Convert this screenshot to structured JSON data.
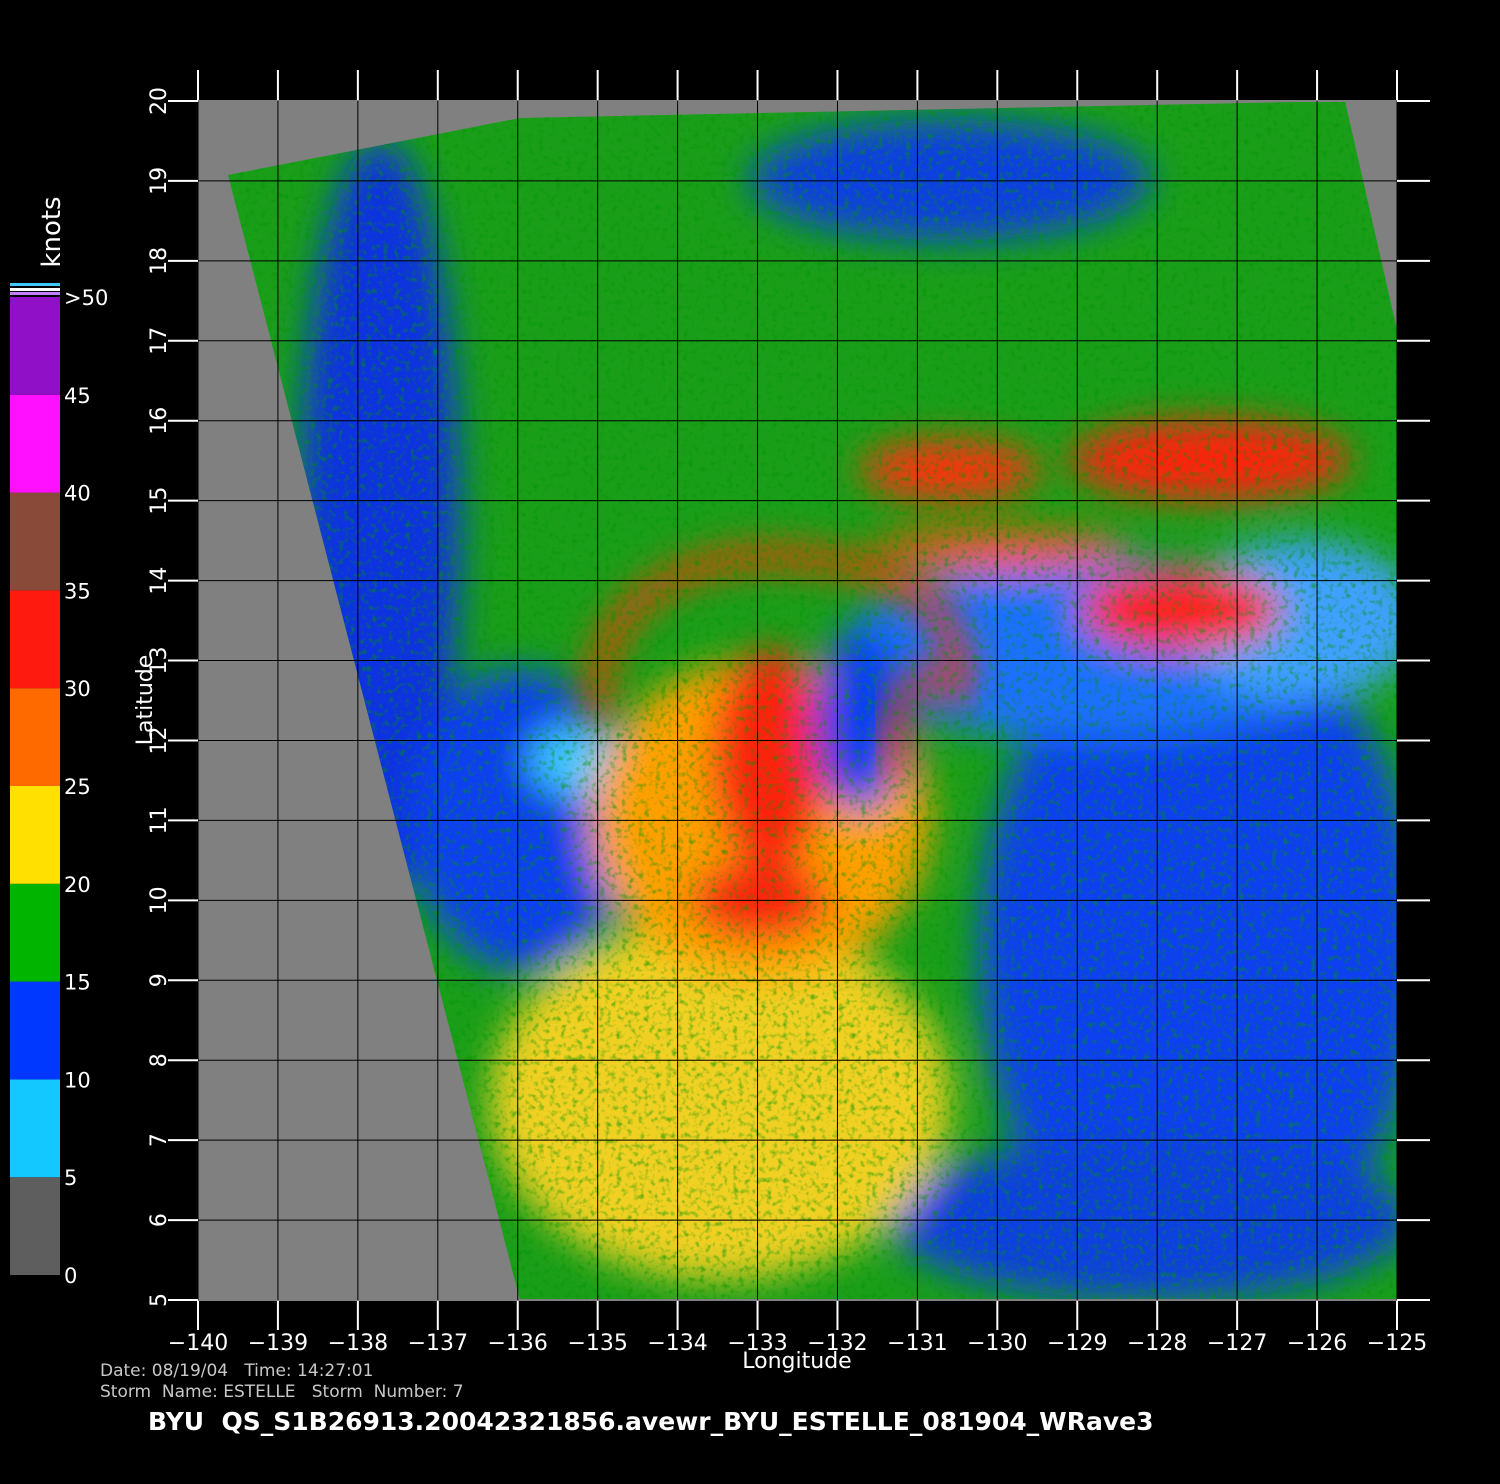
{
  "x_axis": {
    "label": "Longitude",
    "lim": [
      -140,
      -125
    ],
    "ticks": [
      {
        "value": -140,
        "label": "−140"
      },
      {
        "value": -139,
        "label": "−139"
      },
      {
        "value": -138,
        "label": "−138"
      },
      {
        "value": -137,
        "label": "−137"
      },
      {
        "value": -136,
        "label": "−136"
      },
      {
        "value": -135,
        "label": "−135"
      },
      {
        "value": -134,
        "label": "−134"
      },
      {
        "value": -133,
        "label": "−133"
      },
      {
        "value": -132,
        "label": "−132"
      },
      {
        "value": -131,
        "label": "−131"
      },
      {
        "value": -130,
        "label": "−130"
      },
      {
        "value": -129,
        "label": "−129"
      },
      {
        "value": -128,
        "label": "−128"
      },
      {
        "value": -127,
        "label": "−127"
      },
      {
        "value": -126,
        "label": "−126"
      },
      {
        "value": -125,
        "label": "−125"
      }
    ]
  },
  "y_axis": {
    "label": "Latitude",
    "lim": [
      5,
      20
    ],
    "ticks": [
      5,
      6,
      7,
      8,
      9,
      10,
      11,
      12,
      13,
      14,
      15,
      16,
      17,
      18,
      19,
      20
    ]
  },
  "colorbar": {
    "unit": "knots",
    "lim": [
      0,
      50
    ],
    "ticks": [
      0,
      5,
      10,
      15,
      20,
      25,
      30,
      35,
      40,
      45,
      {
        "value": 50,
        "label": ">50"
      }
    ],
    "colors": [
      "#5e5e5e",
      "#12c8ff",
      "#0038ff",
      "#00b400",
      "#ffe000",
      "#ff6a00",
      "#ff1a10",
      "#8a4a3a",
      "#ff10ff",
      "#9010c8"
    ]
  },
  "footer": {
    "date_time": "Date: 08/19/04   Time: 14:27:01",
    "storm": "Storm  Name: ESTELLE   Storm  Number: 7",
    "title": "BYU  QS_S1B26913.20042321856.avewr_BYU_ESTELLE_081904_WRave3"
  }
}
